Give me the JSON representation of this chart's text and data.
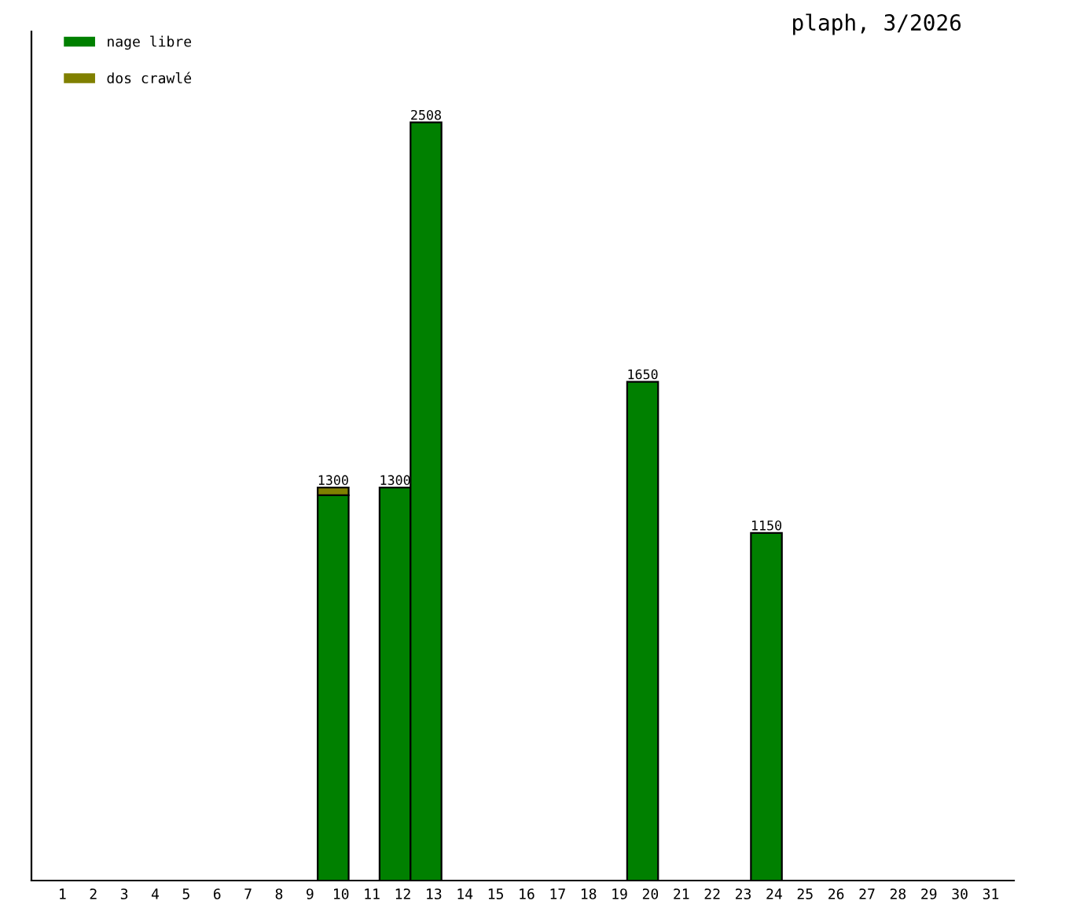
{
  "chart_data": {
    "type": "bar",
    "title": "plaph, 3/2026",
    "stacked": true,
    "categories": [
      "1",
      "2",
      "3",
      "4",
      "5",
      "6",
      "7",
      "8",
      "9",
      "10",
      "11",
      "12",
      "13",
      "14",
      "15",
      "16",
      "17",
      "18",
      "19",
      "20",
      "21",
      "22",
      "23",
      "24",
      "25",
      "26",
      "27",
      "28",
      "29",
      "30",
      "31"
    ],
    "series": [
      {
        "name": "nage libre",
        "color": "#008000",
        "values": [
          null,
          null,
          null,
          null,
          null,
          null,
          null,
          null,
          null,
          1275,
          null,
          1300,
          2508,
          null,
          null,
          null,
          null,
          null,
          null,
          1650,
          null,
          null,
          null,
          1150,
          null,
          null,
          null,
          null,
          null,
          null,
          null
        ],
        "value_labels": [
          null,
          null,
          null,
          null,
          null,
          null,
          null,
          null,
          null,
          null,
          null,
          "1300",
          "2508",
          null,
          null,
          null,
          null,
          null,
          null,
          "1650",
          null,
          null,
          null,
          "1150",
          null,
          null,
          null,
          null,
          null,
          null,
          null
        ]
      },
      {
        "name": "dos crawlé",
        "color": "#808000",
        "values": [
          null,
          null,
          null,
          null,
          null,
          null,
          null,
          null,
          null,
          25,
          null,
          null,
          null,
          null,
          null,
          null,
          null,
          null,
          null,
          null,
          null,
          null,
          null,
          null,
          null,
          null,
          null,
          null,
          null,
          null,
          null
        ]
      }
    ],
    "totals": [
      null,
      null,
      null,
      null,
      null,
      null,
      null,
      null,
      null,
      "1300",
      null,
      null,
      null,
      null,
      null,
      null,
      null,
      null,
      null,
      null,
      null,
      null,
      null,
      null,
      null,
      null,
      null,
      null,
      null,
      null,
      null
    ],
    "legend": "top left",
    "tick_labels": "x",
    "grid": false
  }
}
